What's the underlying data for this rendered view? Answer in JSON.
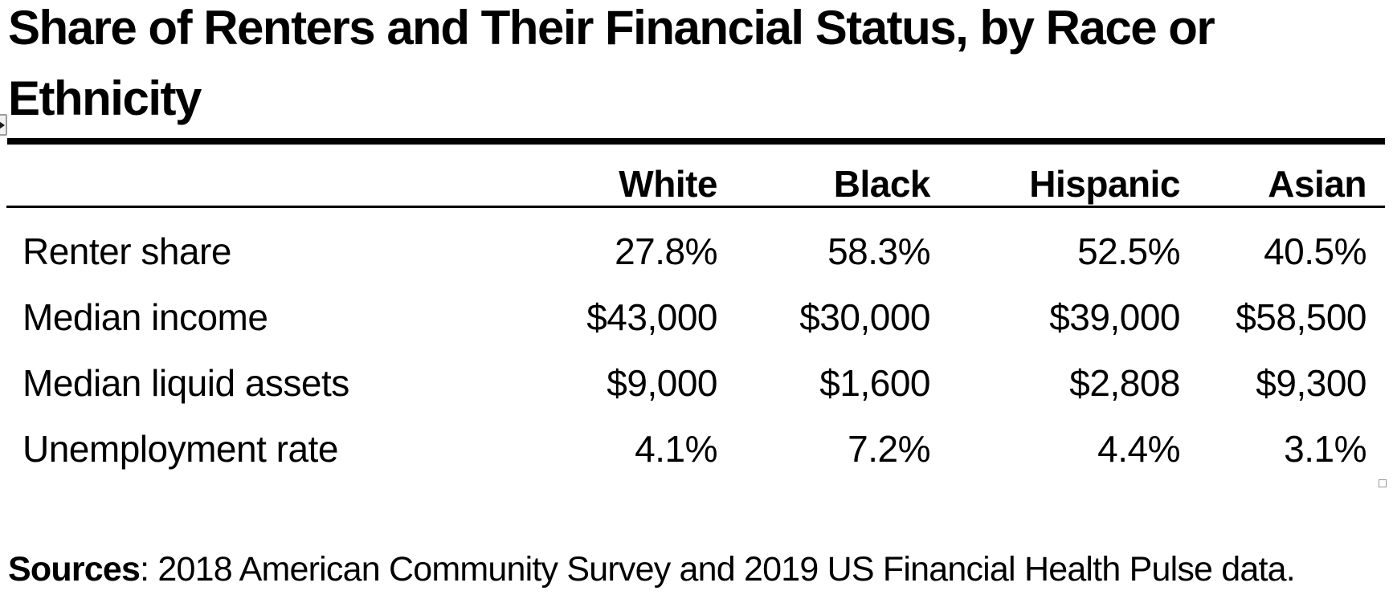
{
  "header": {
    "title_lines": [
      "Share of Renters and Their Financial Status, by Race or",
      "Ethnicity"
    ]
  },
  "chart_data": {
    "type": "table",
    "title": "Share of Renters and Their Financial Status, by Race or Ethnicity",
    "columns": [
      "White",
      "Black",
      "Hispanic",
      "Asian"
    ],
    "rows": [
      {
        "label": "Renter share",
        "values": [
          "27.8%",
          "58.3%",
          "52.5%",
          "40.5%"
        ]
      },
      {
        "label": "Median income",
        "values": [
          "$43,000",
          "$30,000",
          "$39,000",
          "$58,500"
        ]
      },
      {
        "label": "Median liquid assets",
        "values": [
          "$9,000",
          "$1,600",
          "$2,808",
          "$9,300"
        ]
      },
      {
        "label": "Unemployment rate",
        "values": [
          "4.1%",
          "7.2%",
          "4.4%",
          "3.1%"
        ]
      }
    ],
    "source": "Sources: 2018 American Community Survey and 2019 US Financial Health Pulse data.",
    "layout": {
      "value_alignment": "right",
      "header_row_bold": true,
      "grid": "horizontal-rules-only"
    }
  },
  "footer": {
    "sources_label": "Sources",
    "sources_rest": ": 2018 American Community Survey and 2019 US Financial Health Pulse data."
  },
  "icons": {
    "margin_toggle": "expand-right-arrow-icon",
    "corner_handle": "resize-handle"
  },
  "colors": {
    "background": "#ffffff",
    "text": "#000000",
    "rule": "#000000",
    "handle_border": "#999999",
    "handle_fill": "#f2f2f2"
  }
}
